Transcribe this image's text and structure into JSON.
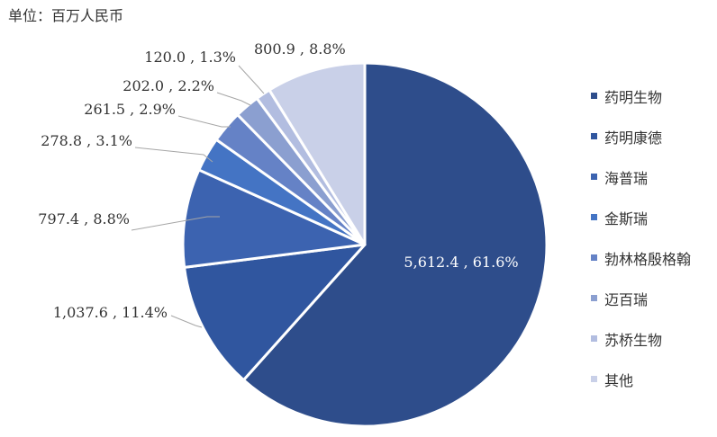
{
  "unit_label": "单位：百万人民币",
  "chart_data": {
    "type": "pie",
    "unit": "百万人民币",
    "legend_position": "right",
    "categories": [
      "药明生物",
      "药明康德",
      "海普瑞",
      "金斯瑞",
      "勃林格殷格翰",
      "迈百瑞",
      "苏桥生物",
      "其他"
    ],
    "values": [
      5612.4,
      1037.6,
      797.4,
      278.8,
      261.5,
      202.0,
      120.0,
      800.9
    ],
    "percents": [
      "61.6%",
      "11.4%",
      "8.8%",
      "3.1%",
      "2.9%",
      "2.2%",
      "1.3%",
      "8.8%"
    ],
    "data_labels": [
      "5,612.4 , 61.6%",
      "1,037.6 , 11.4%",
      "797.4 , 8.8%",
      "278.8 , 3.1%",
      "261.5 , 2.9%",
      "202.0 , 2.2%",
      "120.0 , 1.3%",
      "800.9 , 8.8%"
    ],
    "colors": [
      "#2e4d8b",
      "#30569f",
      "#3c63b0",
      "#4474c4",
      "#6582c6",
      "#8b9fd0",
      "#b2bde0",
      "#c9d0e8"
    ]
  }
}
